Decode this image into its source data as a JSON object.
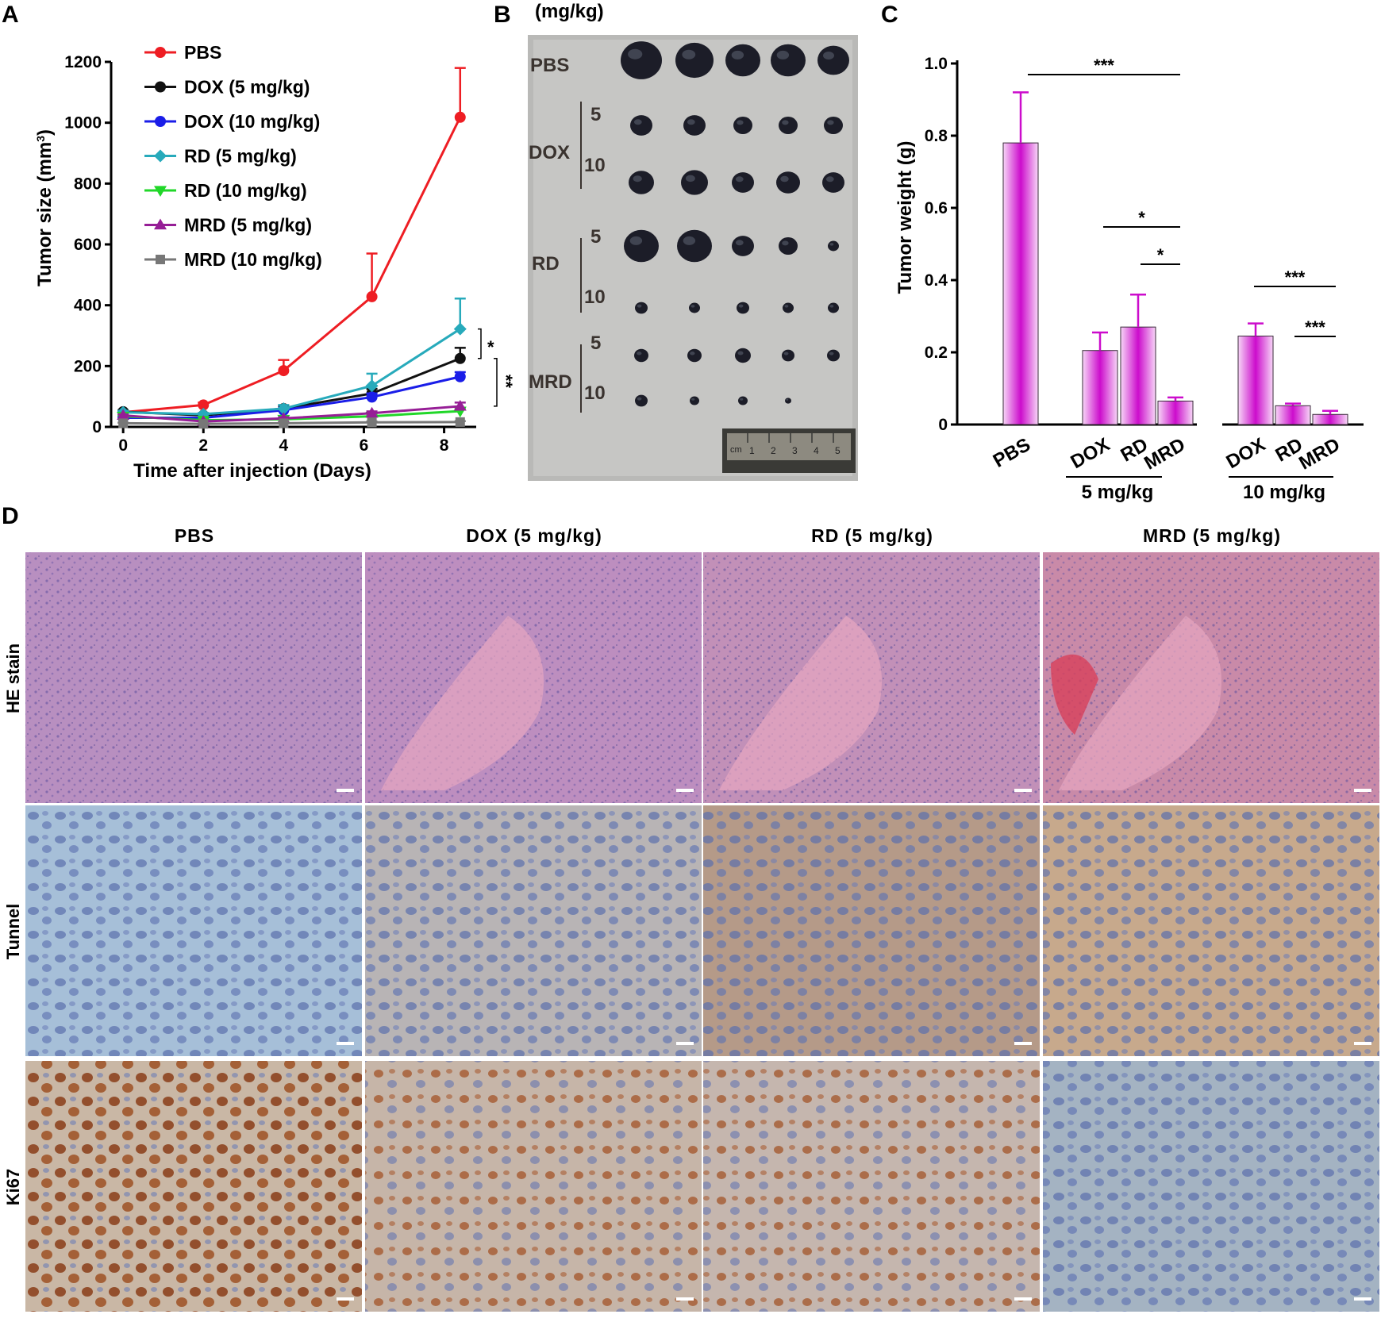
{
  "panels": {
    "a": "A",
    "b": "B",
    "c": "C",
    "d": "D"
  },
  "chart_data": [
    {
      "panel": "A",
      "type": "line",
      "xlabel": "Time after injection (Days)",
      "ylabel": "Tumor size (mm",
      "ylabel_sup": "3",
      "ylabel_close": ")",
      "xlim": [
        -0.3,
        8.8
      ],
      "ylim": [
        0,
        1200
      ],
      "x_ticks": [
        0,
        2,
        4,
        6,
        8
      ],
      "y_ticks": [
        0,
        200,
        400,
        600,
        800,
        1000,
        1200
      ],
      "x": [
        0,
        2,
        4,
        6.2,
        8.4
      ],
      "series": [
        {
          "name": "PBS",
          "color": "#ee1d23",
          "marker": "circle",
          "values": [
            48,
            72,
            185,
            428,
            1018
          ],
          "err": [
            0,
            8,
            35,
            142,
            162
          ]
        },
        {
          "name": "DOX (5 mg/kg)",
          "color": "#111111",
          "marker": "circle",
          "values": [
            50,
            38,
            60,
            110,
            225
          ],
          "err": [
            5,
            5,
            10,
            15,
            35
          ]
        },
        {
          "name": "DOX (10 mg/kg)",
          "color": "#1a1de8",
          "marker": "circle",
          "values": [
            30,
            30,
            55,
            98,
            165
          ],
          "err": [
            3,
            4,
            8,
            12,
            15
          ]
        },
        {
          "name": "RD (5 mg/kg)",
          "color": "#27aabb",
          "marker": "diamond",
          "values": [
            48,
            42,
            60,
            135,
            322
          ],
          "err": [
            5,
            4,
            12,
            40,
            100
          ]
        },
        {
          "name": "RD (10 mg/kg)",
          "color": "#21d729",
          "marker": "triangle-down",
          "values": [
            35,
            22,
            25,
            35,
            52
          ],
          "err": [
            3,
            3,
            4,
            5,
            10
          ]
        },
        {
          "name": "MRD (5 mg/kg)",
          "color": "#961e96",
          "marker": "triangle-up",
          "values": [
            38,
            18,
            28,
            45,
            68
          ],
          "err": [
            3,
            3,
            4,
            6,
            12
          ]
        },
        {
          "name": "MRD (10 mg/kg)",
          "color": "#777777",
          "marker": "square",
          "values": [
            12,
            10,
            12,
            15,
            16
          ],
          "err": [
            2,
            2,
            2,
            3,
            3
          ]
        }
      ],
      "significance": [
        "*",
        "**"
      ]
    },
    {
      "panel": "C",
      "type": "bar",
      "ylabel": "Tumor weight (g)",
      "ylim": [
        0,
        1.0
      ],
      "y_ticks": [
        "0",
        "0.2",
        "0.4",
        "0.6",
        "0.8",
        "1.0"
      ],
      "categories": [
        "PBS",
        "DOX",
        "RD",
        "MRD",
        "DOX",
        "RD",
        "MRD"
      ],
      "values": [
        0.78,
        0.205,
        0.27,
        0.065,
        0.245,
        0.052,
        0.028
      ],
      "err": [
        0.14,
        0.05,
        0.09,
        0.01,
        0.035,
        0.006,
        0.01
      ],
      "groups": [
        "5 mg/kg",
        "10 mg/kg"
      ],
      "bar_color": "#cc0ccc",
      "significance": [
        "***",
        "*",
        "*",
        "***",
        "***"
      ]
    }
  ],
  "photo_b": {
    "unit": "(mg/kg)",
    "rows": {
      "pbs": "PBS",
      "dox": "DOX",
      "rd": "RD",
      "mrd": "MRD"
    },
    "doses": {
      "low": "5",
      "high": "10"
    },
    "ruler_unit": "cm",
    "ruler_marks": [
      "1",
      "2",
      "3",
      "4",
      "5"
    ]
  },
  "histology": {
    "columns": [
      "PBS",
      "DOX (5 mg/kg)",
      "RD (5 mg/kg)",
      "MRD (5 mg/kg)"
    ],
    "rows": [
      "HE stain",
      "Tunnel",
      "Ki67"
    ]
  }
}
